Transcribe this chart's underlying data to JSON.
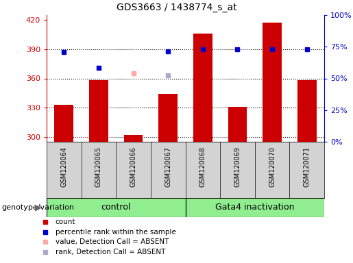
{
  "title": "GDS3663 / 1438774_s_at",
  "samples": [
    "GSM120064",
    "GSM120065",
    "GSM120066",
    "GSM120067",
    "GSM120068",
    "GSM120069",
    "GSM120070",
    "GSM120071"
  ],
  "control_label": "control",
  "treatment_label": "Gata4 inactivation",
  "group_label": "genotype/variation",
  "counts": [
    333,
    358,
    302,
    344,
    406,
    331,
    417,
    358
  ],
  "percentile_ranks": [
    387,
    371,
    null,
    388,
    390,
    390,
    390,
    390
  ],
  "absent_values": [
    null,
    null,
    365,
    null,
    null,
    null,
    null,
    null
  ],
  "absent_ranks": [
    null,
    null,
    null,
    363,
    null,
    null,
    null,
    null
  ],
  "ylim_left": [
    295,
    425
  ],
  "ylim_right": [
    0,
    100
  ],
  "yticks_left": [
    300,
    330,
    360,
    390,
    420
  ],
  "yticks_right": [
    0,
    25,
    50,
    75,
    100
  ],
  "ytick_right_labels": [
    "0%",
    "25%",
    "50%",
    "75%",
    "100%"
  ],
  "bar_color": "#cc0000",
  "percentile_color": "#0000cc",
  "absent_value_color": "#ffaaaa",
  "absent_rank_color": "#aaaacc",
  "left_axis_color": "#cc0000",
  "right_axis_color": "#0000cc",
  "plot_bg_color": "#ffffff",
  "sample_bg_color": "#d3d3d3",
  "control_bg_color": "#90ee90",
  "treatment_bg_color": "#90ee90",
  "bar_width": 0.55,
  "title_fontsize": 10,
  "tick_fontsize": 8,
  "sample_fontsize": 7,
  "group_fontsize": 9,
  "legend_fontsize": 7.5,
  "genotype_label_fontsize": 8
}
